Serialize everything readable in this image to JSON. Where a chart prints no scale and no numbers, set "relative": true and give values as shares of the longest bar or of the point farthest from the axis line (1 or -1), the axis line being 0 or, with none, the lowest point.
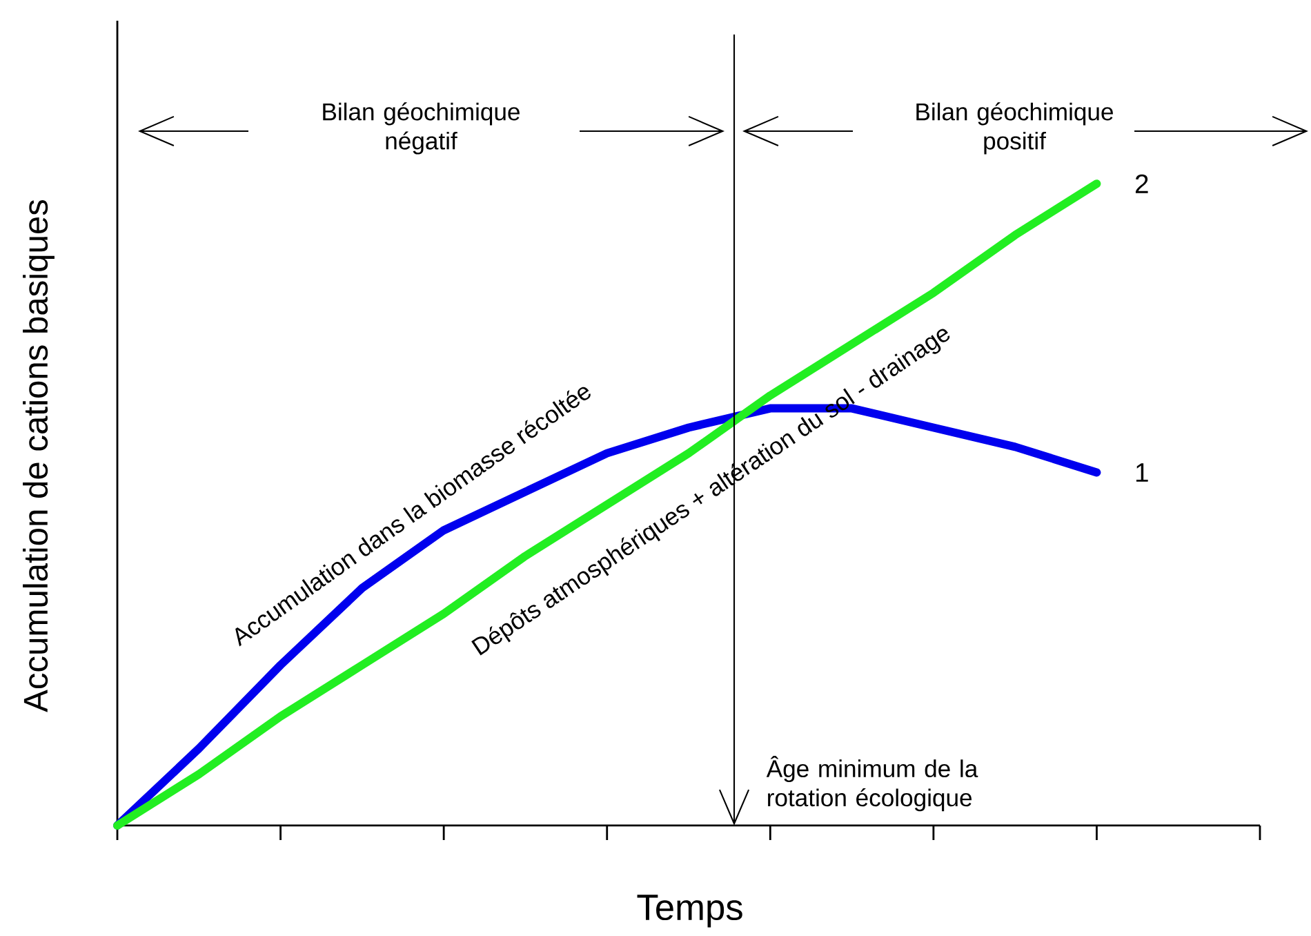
{
  "chart_data": {
    "type": "line",
    "relative": true,
    "xlabel": "Temps",
    "ylabel": "Accumulation de cations basiques",
    "categories": [
      null,
      null,
      null,
      null,
      null,
      null,
      null,
      null,
      null,
      null,
      null,
      null,
      null,
      null,
      null
    ],
    "series": [
      {
        "name": "1",
        "color": "#0000ee",
        "values": [
          0,
          0.12,
          0.25,
          0.37,
          0.46,
          0.52,
          0.58,
          0.62,
          0.65,
          0.65,
          0.62,
          0.59,
          0.55,
          null,
          null
        ]
      },
      {
        "name": "2",
        "color": "#22ee22",
        "values": [
          0,
          0.08,
          0.17,
          0.25,
          0.33,
          0.42,
          0.5,
          0.58,
          0.67,
          0.75,
          0.83,
          0.92,
          1,
          null,
          null
        ]
      }
    ],
    "annotations": [
      "Bilan géochimique négatif",
      "Bilan géochimique positif",
      "Accumulation dans la biomasse récoltée",
      "Dépôts atmosphériques + altération du sol - drainage",
      "Âge minimum de la rotation écologique"
    ]
  }
}
